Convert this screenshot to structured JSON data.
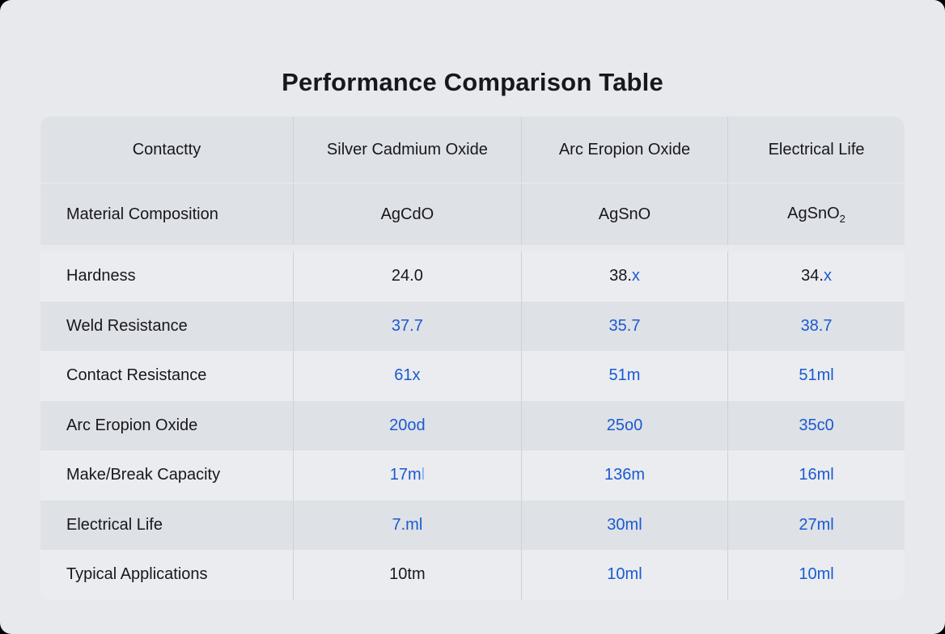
{
  "page": {
    "title": "Performance Comparison Table",
    "colors": {
      "accent_blue": "#1a5ad2",
      "text_dark": "#17181c",
      "row_gray": "#dee1e6",
      "row_light": "#eaecef",
      "background": "#e7e9ec"
    }
  },
  "table": {
    "columns": [
      "Contactty",
      "Silver Cadmium Oxide",
      "Arc Eropion Oxide",
      "Electrical Life"
    ],
    "rows": [
      {
        "label": "Material Composition",
        "cells": [
          [
            {
              "text": "AgCdO",
              "color": "dark"
            }
          ],
          [
            {
              "text": "AgSnO",
              "color": "dark"
            }
          ],
          [
            {
              "text": "AgSnO₂",
              "color": "dark"
            }
          ]
        ]
      },
      {
        "label": "Hardness",
        "cells": [
          [
            {
              "text": "24.0",
              "color": "dark"
            }
          ],
          [
            {
              "text": "38.",
              "color": "dark"
            },
            {
              "text": "x",
              "color": "blue"
            }
          ],
          [
            {
              "text": "34.",
              "color": "dark"
            },
            {
              "text": "x",
              "color": "blue"
            }
          ]
        ]
      },
      {
        "label": "Weld Resistance",
        "cells": [
          [
            {
              "text": "37.7",
              "color": "blue"
            }
          ],
          [
            {
              "text": "35.7",
              "color": "blue"
            }
          ],
          [
            {
              "text": "38.7",
              "color": "blue"
            }
          ]
        ]
      },
      {
        "label": "Contact Resistance",
        "cells": [
          [
            {
              "text": "61x",
              "color": "blue"
            }
          ],
          [
            {
              "text": "51m",
              "color": "blue"
            }
          ],
          [
            {
              "text": "51ml",
              "color": "blue"
            }
          ]
        ]
      },
      {
        "label": "Arc Eropion Oxide",
        "cells": [
          [
            {
              "text": "20od",
              "color": "blue"
            }
          ],
          [
            {
              "text": "25o0",
              "color": "blue"
            }
          ],
          [
            {
              "text": "35c0",
              "color": "blue"
            }
          ]
        ]
      },
      {
        "label": "Make/Break Capacity",
        "cells": [
          [
            {
              "text": "17m",
              "color": "blue"
            },
            {
              "text": "l",
              "color": "blue-light"
            }
          ],
          [
            {
              "text": "136m",
              "color": "blue"
            }
          ],
          [
            {
              "text": "16ml",
              "color": "blue"
            }
          ]
        ]
      },
      {
        "label": "Electrical Life",
        "cells": [
          [
            {
              "text": "7.ml",
              "color": "blue"
            }
          ],
          [
            {
              "text": "30ml",
              "color": "blue"
            }
          ],
          [
            {
              "text": "27ml",
              "color": "blue"
            }
          ]
        ]
      },
      {
        "label": "Typical Applications",
        "cells": [
          [
            {
              "text": "10tm",
              "color": "dark"
            }
          ],
          [
            {
              "text": "10ml",
              "color": "blue"
            }
          ],
          [
            {
              "text": "10ml",
              "color": "blue"
            }
          ]
        ]
      }
    ]
  }
}
